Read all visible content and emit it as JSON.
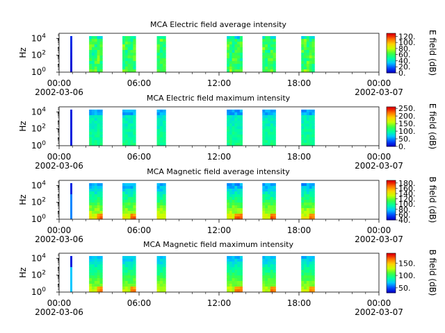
{
  "colors": {
    "spectral_scale": [
      "#0000c8",
      "#0050ff",
      "#00c8ff",
      "#00ffa0",
      "#40ff40",
      "#c8ff00",
      "#ffd000",
      "#ff7000",
      "#e00000"
    ],
    "axis": "#000000",
    "background": "#ffffff"
  },
  "time_axis": {
    "tick_labels": [
      "00:00",
      "06:00",
      "12:00",
      "18:00",
      "00:00"
    ],
    "date_labels": [
      "2002-03-06",
      "2002-03-07"
    ]
  },
  "chart_data": [
    {
      "type": "heatmap",
      "title": "MCA  Electric field average intensity",
      "ylabel": "Hz",
      "y_scale": "log",
      "y_ticks": [
        {
          "base": "10",
          "exp": "0",
          "value": 1
        },
        {
          "base": "10",
          "exp": "2",
          "value": 100
        },
        {
          "base": "10",
          "exp": "4",
          "value": 10000
        }
      ],
      "xlim": [
        "2002-03-06 00:00",
        "2002-03-07 00:00"
      ],
      "colorbar": {
        "label": "E field (dB)",
        "range": [
          0,
          130
        ],
        "ticks": [
          "0.",
          "20.",
          "40.",
          "60.",
          "80.",
          "100.",
          "120."
        ]
      },
      "data_intervals": [
        [
          "00:00",
          "00:30"
        ],
        [
          "02:15",
          "03:15"
        ],
        [
          "04:45",
          "05:45"
        ],
        [
          "07:20",
          "08:00"
        ],
        [
          "12:35",
          "13:45"
        ],
        [
          "15:15",
          "16:15"
        ],
        [
          "18:10",
          "19:10"
        ]
      ],
      "profile": "eavg"
    },
    {
      "type": "heatmap",
      "title": "MCA  Electric field maximum intensity",
      "ylabel": "Hz",
      "y_scale": "log",
      "y_ticks": [
        {
          "base": "10",
          "exp": "0",
          "value": 1
        },
        {
          "base": "10",
          "exp": "2",
          "value": 100
        },
        {
          "base": "10",
          "exp": "4",
          "value": 10000
        }
      ],
      "xlim": [
        "2002-03-06 00:00",
        "2002-03-07 00:00"
      ],
      "colorbar": {
        "label": "E field (dB)",
        "range": [
          0,
          260
        ],
        "ticks": [
          "0.",
          "50.",
          "100.",
          "150.",
          "200.",
          "250."
        ]
      },
      "data_intervals": [
        [
          "00:00",
          "00:30"
        ],
        [
          "02:15",
          "03:15"
        ],
        [
          "04:45",
          "05:45"
        ],
        [
          "07:20",
          "08:00"
        ],
        [
          "12:35",
          "13:45"
        ],
        [
          "15:15",
          "16:15"
        ],
        [
          "18:10",
          "19:10"
        ]
      ],
      "profile": "emax"
    },
    {
      "type": "heatmap",
      "title": "MCA  Magnetic field average intensity",
      "ylabel": "Hz",
      "y_scale": "log",
      "y_ticks": [
        {
          "base": "10",
          "exp": "0",
          "value": 1
        },
        {
          "base": "10",
          "exp": "2",
          "value": 100
        },
        {
          "base": "10",
          "exp": "4",
          "value": 10000
        }
      ],
      "xlim": [
        "2002-03-06 00:00",
        "2002-03-07 00:00"
      ],
      "colorbar": {
        "label": "B field (dB)",
        "range": [
          40,
          190
        ],
        "ticks": [
          "40.",
          "60.",
          "80.",
          "100.",
          "120.",
          "140.",
          "160.",
          "180."
        ]
      },
      "data_intervals": [
        [
          "00:00",
          "00:30"
        ],
        [
          "02:15",
          "03:15"
        ],
        [
          "04:45",
          "05:45"
        ],
        [
          "07:20",
          "08:00"
        ],
        [
          "12:35",
          "13:45"
        ],
        [
          "15:15",
          "16:15"
        ],
        [
          "18:10",
          "19:10"
        ]
      ],
      "profile": "bavg"
    },
    {
      "type": "heatmap",
      "title": "MCA  Magnetic field maximum intensity",
      "ylabel": "Hz",
      "y_scale": "log",
      "y_ticks": [
        {
          "base": "10",
          "exp": "0",
          "value": 1
        },
        {
          "base": "10",
          "exp": "2",
          "value": 100
        },
        {
          "base": "10",
          "exp": "4",
          "value": 10000
        }
      ],
      "xlim": [
        "2002-03-06 00:00",
        "2002-03-07 00:00"
      ],
      "colorbar": {
        "label": "B field (dB)",
        "range": [
          30,
          190
        ],
        "ticks": [
          "50.",
          "100.",
          "150."
        ]
      },
      "data_intervals": [
        [
          "00:00",
          "00:30"
        ],
        [
          "02:15",
          "03:15"
        ],
        [
          "04:45",
          "05:45"
        ],
        [
          "07:20",
          "08:00"
        ],
        [
          "12:35",
          "13:45"
        ],
        [
          "15:15",
          "16:15"
        ],
        [
          "18:10",
          "19:10"
        ]
      ],
      "profile": "bmax"
    }
  ]
}
